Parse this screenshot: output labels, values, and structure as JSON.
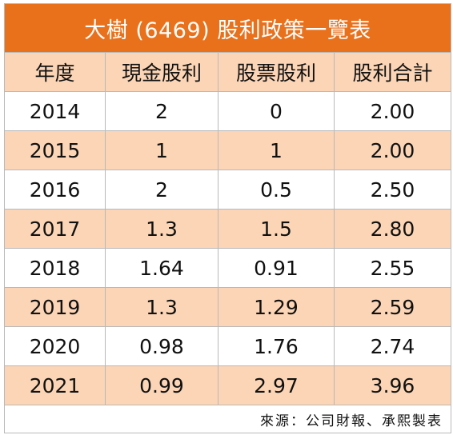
{
  "table": {
    "title": "大樹 (6469) 股利政策一覽表",
    "headers": [
      "年度",
      "現金股利",
      "股票股利",
      "股利合計"
    ],
    "rows": [
      [
        "2014",
        "2",
        "0",
        "2.00"
      ],
      [
        "2015",
        "1",
        "1",
        "2.00"
      ],
      [
        "2016",
        "2",
        "0.5",
        "2.50"
      ],
      [
        "2017",
        "1.3",
        "1.5",
        "2.80"
      ],
      [
        "2018",
        "1.64",
        "0.91",
        "2.55"
      ],
      [
        "2019",
        "1.3",
        "1.29",
        "2.59"
      ],
      [
        "2020",
        "0.98",
        "1.76",
        "2.74"
      ],
      [
        "2021",
        "0.99",
        "2.97",
        "3.96"
      ]
    ],
    "source": "來源：公司財報、承熙製表"
  },
  "colors": {
    "title_bg": "#e9711c",
    "title_text": "#ffffff",
    "band_bg": "#fbd5b5",
    "plain_bg": "#ffffff",
    "border": "#b9b9b9"
  }
}
